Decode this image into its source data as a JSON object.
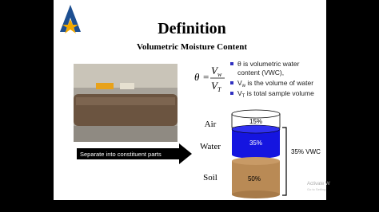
{
  "slide": {
    "title": "Definition",
    "subtitle": "Volumetric Moisture Content",
    "formula": {
      "lhs": "θ",
      "eq": "=",
      "num": "V",
      "num_sub": "w",
      "den": "V",
      "den_sub": "T"
    },
    "bullets": [
      {
        "lines": [
          "θ is volumetric water",
          "content (VWC),"
        ]
      },
      {
        "main": "V",
        "sub": "w",
        "rest": " is the volume of water"
      },
      {
        "main": "V",
        "sub": "T",
        "rest": " is total sample volume"
      }
    ],
    "arrow_label": "Separate into constituent parts",
    "layers": [
      {
        "name": "Air",
        "percent": "15%"
      },
      {
        "name": "Water",
        "percent": "35%"
      },
      {
        "name": "Soil",
        "percent": "50%"
      }
    ],
    "bracket_label": "35% VWC",
    "watermark": [
      "Activate W",
      "Go to Setting"
    ]
  }
}
